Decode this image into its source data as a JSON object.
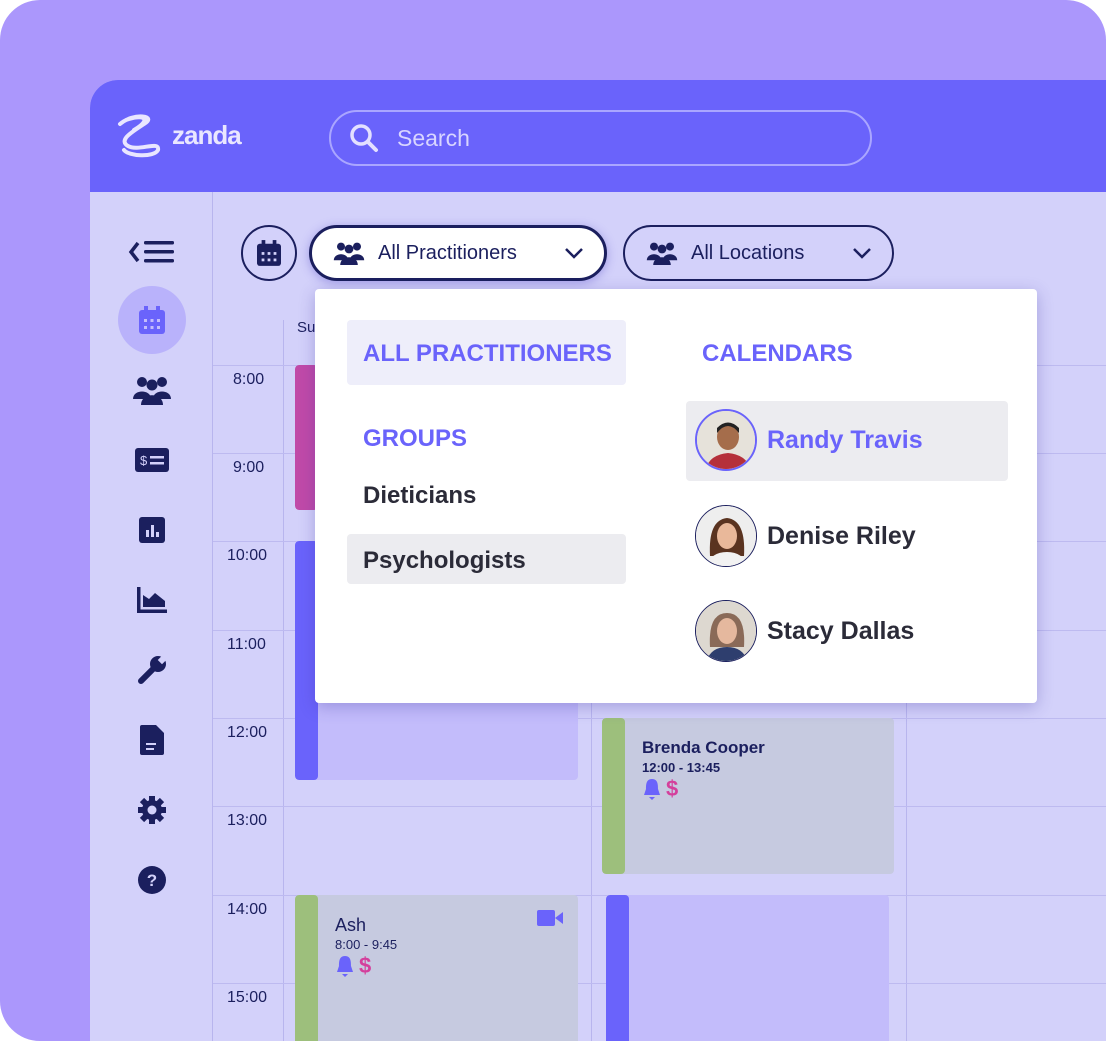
{
  "brand": {
    "name": "zanda"
  },
  "search": {
    "placeholder": "Search"
  },
  "sidebar": {
    "items": [
      {
        "icon": "collapse-menu-icon"
      },
      {
        "icon": "calendar-icon",
        "active": true
      },
      {
        "icon": "clients-icon"
      },
      {
        "icon": "billing-icon"
      },
      {
        "icon": "reports-icon"
      },
      {
        "icon": "analytics-icon"
      },
      {
        "icon": "tools-icon"
      },
      {
        "icon": "documents-icon"
      },
      {
        "icon": "settings-icon"
      },
      {
        "icon": "help-icon"
      }
    ]
  },
  "toolbar": {
    "practitioners_label": "All Practitioners",
    "locations_label": "All Locations"
  },
  "calendar": {
    "day_header": "Su",
    "times": [
      "8:00",
      "9:00",
      "10:00",
      "11:00",
      "12:00",
      "13:00",
      "14:00",
      "15:00"
    ],
    "events": [
      {
        "title": "Brenda Cooper",
        "time": "12:00 - 13:45",
        "color": "#9dbf7c"
      },
      {
        "title": "Ash",
        "time": "8:00 - 9:45",
        "color": "#9dbf7c",
        "video": true
      }
    ]
  },
  "dropdown": {
    "all_label": "ALL PRACTITIONERS",
    "groups_heading": "GROUPS",
    "groups": [
      "Dieticians",
      "Psychologists"
    ],
    "calendars_heading": "CALENDARS",
    "calendars": [
      "Randy Travis",
      "Denise Riley",
      "Stacy Dallas"
    ]
  },
  "colors": {
    "accent": "#6a63fb",
    "navy": "#1b1f5e",
    "pink": "#d43f9c",
    "green": "#9dbf7c"
  }
}
